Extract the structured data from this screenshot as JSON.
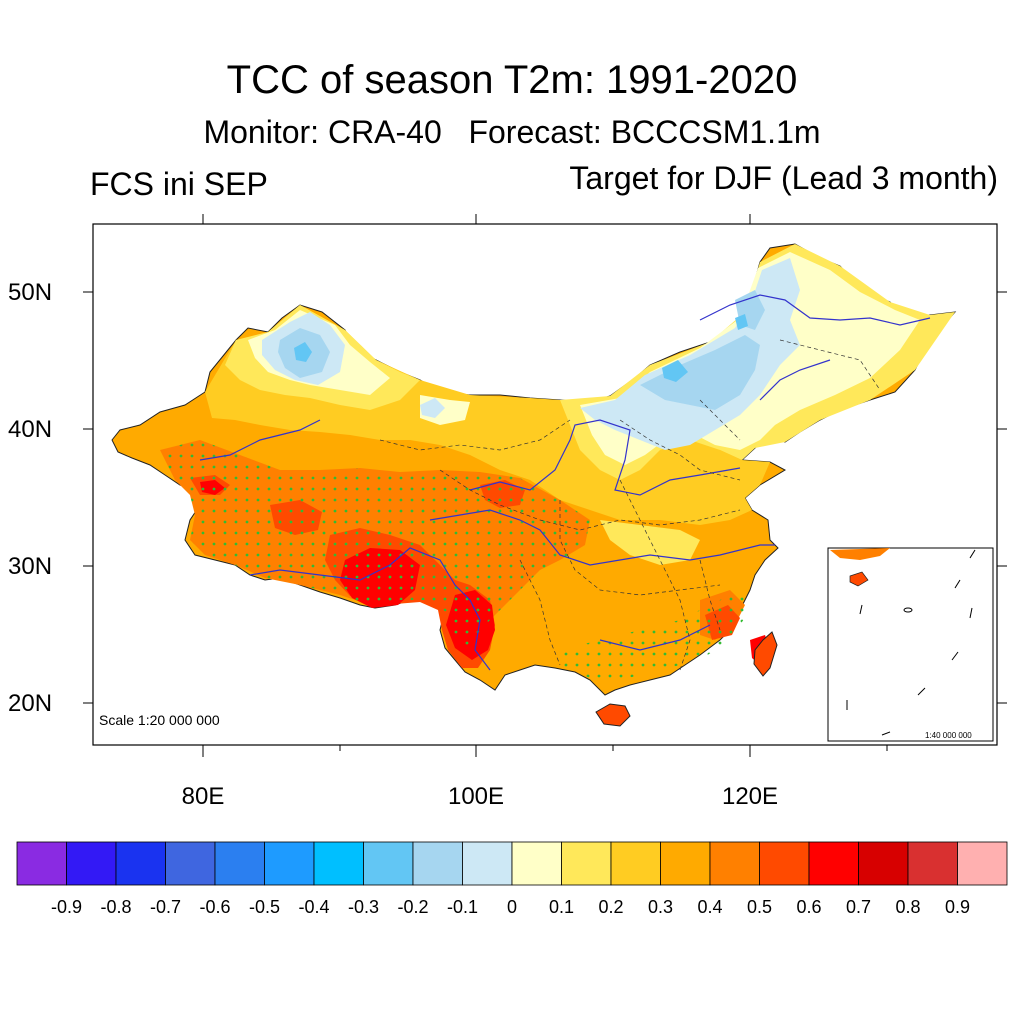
{
  "title": "TCC of season T2m: 1991-2020",
  "subtitle": "Monitor: CRA-40   Forecast: BCCCSM1.1m",
  "left_string": "FCS ini SEP",
  "right_string": "Target for DJF (Lead 3 month)",
  "scale_text": "Scale 1:20 000 000",
  "inset_scale_text": "1:40 000 000",
  "lat_labels": [
    "50N",
    "40N",
    "30N",
    "20N"
  ],
  "lon_labels": [
    "80E",
    "100E",
    "120E"
  ],
  "colorbar": {
    "colors": [
      "#8a2be2",
      "#3319f5",
      "#1a33f0",
      "#3f66e0",
      "#2b7ff0",
      "#1e9bff",
      "#00bfff",
      "#62c6f4",
      "#a6d6f0",
      "#cde8f5",
      "#ffffc8",
      "#ffe85a",
      "#ffcc22",
      "#ffaa00",
      "#ff8000",
      "#ff4a00",
      "#ff0000",
      "#d70000",
      "#d93030",
      "#ffb0b0"
    ],
    "labels": [
      "-0.9",
      "-0.8",
      "-0.7",
      "-0.6",
      "-0.5",
      "-0.4",
      "-0.3",
      "-0.2",
      "-0.1",
      "0",
      "0.1",
      "0.2",
      "0.3",
      "0.4",
      "0.5",
      "0.6",
      "0.7",
      "0.8",
      "0.9"
    ]
  },
  "map_colors": {
    "significance_dots": "#33bb33",
    "rivers": "#3333cc",
    "borders": "#333333"
  }
}
